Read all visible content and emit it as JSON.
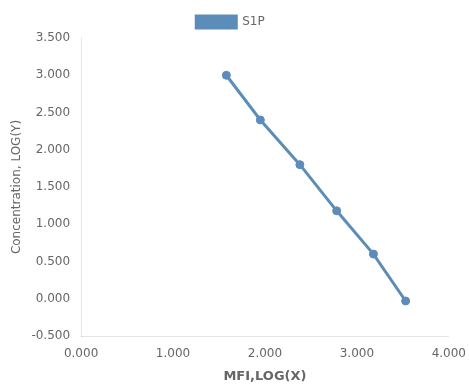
{
  "chart_data": {
    "type": "line",
    "x": [
      1.58,
      1.95,
      2.38,
      2.78,
      3.18,
      3.53
    ],
    "series": [
      {
        "name": "S1P",
        "color": "#5b8db8",
        "values": [
          3.0,
          2.4,
          1.8,
          1.18,
          0.6,
          -0.03
        ],
        "marker": "circle",
        "line_style": "solid"
      }
    ],
    "xlabel": "MFI,LOG(X)",
    "ylabel": "Concentration, LOG(Y)",
    "xlim": [
      0.0,
      4.0
    ],
    "ylim": [
      -0.5,
      3.5
    ],
    "xticks": [
      {
        "value": 0,
        "label": "0.000"
      },
      {
        "value": 1,
        "label": "1.000"
      },
      {
        "value": 2,
        "label": "2.000"
      },
      {
        "value": 3,
        "label": "3.000"
      },
      {
        "value": 4,
        "label": "4.000"
      }
    ],
    "yticks": [
      {
        "value": -0.5,
        "label": "-0.500"
      },
      {
        "value": 0,
        "label": "0.000"
      },
      {
        "value": 0.5,
        "label": "0.500"
      },
      {
        "value": 1,
        "label": "1.000"
      },
      {
        "value": 1.5,
        "label": "1.500"
      },
      {
        "value": 2,
        "label": "2.000"
      },
      {
        "value": 2.5,
        "label": "2.500"
      },
      {
        "value": 3,
        "label": "3.000"
      },
      {
        "value": 3.5,
        "label": "3.500"
      }
    ],
    "grid": false,
    "legend": "top"
  }
}
